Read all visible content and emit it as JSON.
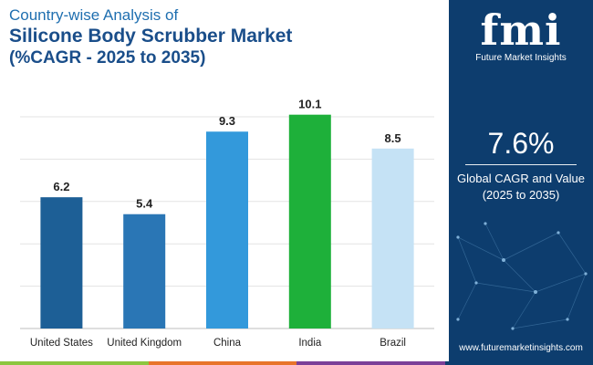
{
  "title": {
    "line1": "Country-wise Analysis of",
    "line2": "Silicone Body Scrubber Market",
    "line3": "(%CAGR - 2025 to 2035)"
  },
  "chart_data": {
    "type": "bar",
    "categories": [
      "United States",
      "United Kingdom",
      "China",
      "India",
      "Brazil"
    ],
    "values": [
      6.2,
      5.4,
      9.3,
      10.1,
      8.5
    ],
    "bar_colors": [
      "#1d5f96",
      "#2a76b5",
      "#3399db",
      "#1eb03a",
      "#c5e2f5"
    ],
    "title": "Silicone Body Scrubber Market",
    "xlabel": "",
    "ylabel": "",
    "ylim": [
      0,
      10
    ],
    "grid": true
  },
  "brand": {
    "logo_text": "fmi",
    "logo_subtitle": "Future Market Insights",
    "website": "www.futuremarketinsights.com"
  },
  "summary": {
    "cagr_value": "7.6%",
    "cagr_label_line1": "Global CAGR and Value",
    "cagr_label_line2": "(2025 to 2035)"
  },
  "colors": {
    "panel_bg": "#0d3d6e",
    "title_dark": "#1a4e8a",
    "title_light": "#1f6fb0",
    "strip": [
      "#8cc63f",
      "#e8742a",
      "#7b3f98",
      "#0d3d6e"
    ]
  },
  "icons": [
    "fmi-logo-icon",
    "network-graphic-icon"
  ]
}
